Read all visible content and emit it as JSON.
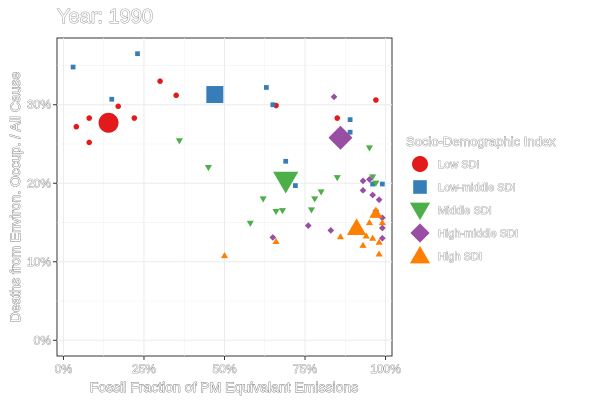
{
  "chart_data": {
    "type": "scatter",
    "title": "Year: 1990",
    "xlabel": "Fossil Fraction of PM Equivalant Emissions",
    "ylabel": "Deaths from Environ. Occup. / All Cause",
    "xlim": [
      -0.02,
      1.02
    ],
    "ylim": [
      -0.02,
      0.385
    ],
    "x_ticks": [
      0,
      0.25,
      0.5,
      0.75,
      1.0
    ],
    "x_tick_labels": [
      "0%",
      "25%",
      "50%",
      "75%",
      "100%"
    ],
    "y_ticks": [
      0,
      0.1,
      0.2,
      0.3
    ],
    "y_tick_labels": [
      "0%",
      "10%",
      "20%",
      "30%"
    ],
    "grid": true,
    "legend_title": "Socio-Demographic Index",
    "legend_position": "right",
    "series": [
      {
        "name": "Low SDI",
        "shape": "circle",
        "color": "#e31a1c",
        "points": [
          {
            "x": 0.04,
            "y": 0.272,
            "size": 1
          },
          {
            "x": 0.08,
            "y": 0.283,
            "size": 1
          },
          {
            "x": 0.08,
            "y": 0.252,
            "size": 1
          },
          {
            "x": 0.14,
            "y": 0.277,
            "size": 4
          },
          {
            "x": 0.17,
            "y": 0.298,
            "size": 1
          },
          {
            "x": 0.22,
            "y": 0.283,
            "size": 1
          },
          {
            "x": 0.3,
            "y": 0.33,
            "size": 1
          },
          {
            "x": 0.35,
            "y": 0.312,
            "size": 1
          },
          {
            "x": 0.66,
            "y": 0.299,
            "size": 1
          },
          {
            "x": 0.85,
            "y": 0.283,
            "size": 1
          },
          {
            "x": 0.97,
            "y": 0.306,
            "size": 1
          }
        ]
      },
      {
        "name": "Low-middle SDI",
        "shape": "square",
        "color": "#377eb8",
        "points": [
          {
            "x": 0.03,
            "y": 0.348,
            "size": 1
          },
          {
            "x": 0.15,
            "y": 0.307,
            "size": 1
          },
          {
            "x": 0.23,
            "y": 0.365,
            "size": 1
          },
          {
            "x": 0.47,
            "y": 0.313,
            "size": 4
          },
          {
            "x": 0.63,
            "y": 0.322,
            "size": 1
          },
          {
            "x": 0.65,
            "y": 0.3,
            "size": 1
          },
          {
            "x": 0.69,
            "y": 0.228,
            "size": 1
          },
          {
            "x": 0.72,
            "y": 0.197,
            "size": 1
          },
          {
            "x": 0.89,
            "y": 0.281,
            "size": 1
          },
          {
            "x": 0.89,
            "y": 0.265,
            "size": 1
          },
          {
            "x": 0.96,
            "y": 0.199,
            "size": 1
          },
          {
            "x": 0.99,
            "y": 0.199,
            "size": 1
          }
        ]
      },
      {
        "name": "Middle SDI",
        "shape": "triangle-down",
        "color": "#4daf4a",
        "points": [
          {
            "x": 0.36,
            "y": 0.254,
            "size": 1
          },
          {
            "x": 0.45,
            "y": 0.22,
            "size": 1
          },
          {
            "x": 0.58,
            "y": 0.149,
            "size": 1
          },
          {
            "x": 0.62,
            "y": 0.18,
            "size": 1
          },
          {
            "x": 0.66,
            "y": 0.164,
            "size": 1
          },
          {
            "x": 0.68,
            "y": 0.165,
            "size": 1
          },
          {
            "x": 0.69,
            "y": 0.203,
            "size": 4
          },
          {
            "x": 0.77,
            "y": 0.166,
            "size": 1
          },
          {
            "x": 0.78,
            "y": 0.18,
            "size": 1
          },
          {
            "x": 0.8,
            "y": 0.189,
            "size": 1
          },
          {
            "x": 0.85,
            "y": 0.207,
            "size": 1
          },
          {
            "x": 0.95,
            "y": 0.245,
            "size": 1
          },
          {
            "x": 0.96,
            "y": 0.208,
            "size": 1
          },
          {
            "x": 0.97,
            "y": 0.2,
            "size": 1
          }
        ]
      },
      {
        "name": "High-middle SDI",
        "shape": "diamond",
        "color": "#984ea3",
        "points": [
          {
            "x": 0.65,
            "y": 0.131,
            "size": 1
          },
          {
            "x": 0.76,
            "y": 0.146,
            "size": 1
          },
          {
            "x": 0.83,
            "y": 0.14,
            "size": 1
          },
          {
            "x": 0.84,
            "y": 0.31,
            "size": 1
          },
          {
            "x": 0.86,
            "y": 0.258,
            "size": 4
          },
          {
            "x": 0.93,
            "y": 0.203,
            "size": 1
          },
          {
            "x": 0.93,
            "y": 0.191,
            "size": 1
          },
          {
            "x": 0.95,
            "y": 0.205,
            "size": 1
          },
          {
            "x": 0.96,
            "y": 0.185,
            "size": 1
          },
          {
            "x": 0.98,
            "y": 0.179,
            "size": 1
          },
          {
            "x": 0.99,
            "y": 0.156,
            "size": 1
          },
          {
            "x": 0.99,
            "y": 0.143,
            "size": 1
          },
          {
            "x": 0.99,
            "y": 0.13,
            "size": 1
          },
          {
            "x": 0.97,
            "y": 0.165,
            "size": 1
          }
        ]
      },
      {
        "name": "High SDI",
        "shape": "triangle-up",
        "color": "#ff7f00",
        "points": [
          {
            "x": 0.5,
            "y": 0.108,
            "size": 1
          },
          {
            "x": 0.66,
            "y": 0.126,
            "size": 1
          },
          {
            "x": 0.86,
            "y": 0.132,
            "size": 1
          },
          {
            "x": 0.91,
            "y": 0.143,
            "size": 3
          },
          {
            "x": 0.93,
            "y": 0.121,
            "size": 1
          },
          {
            "x": 0.94,
            "y": 0.133,
            "size": 1
          },
          {
            "x": 0.95,
            "y": 0.15,
            "size": 1
          },
          {
            "x": 0.96,
            "y": 0.13,
            "size": 1
          },
          {
            "x": 0.97,
            "y": 0.162,
            "size": 2
          },
          {
            "x": 0.98,
            "y": 0.11,
            "size": 1
          },
          {
            "x": 0.98,
            "y": 0.125,
            "size": 1
          },
          {
            "x": 0.99,
            "y": 0.15,
            "size": 1
          }
        ]
      }
    ]
  }
}
